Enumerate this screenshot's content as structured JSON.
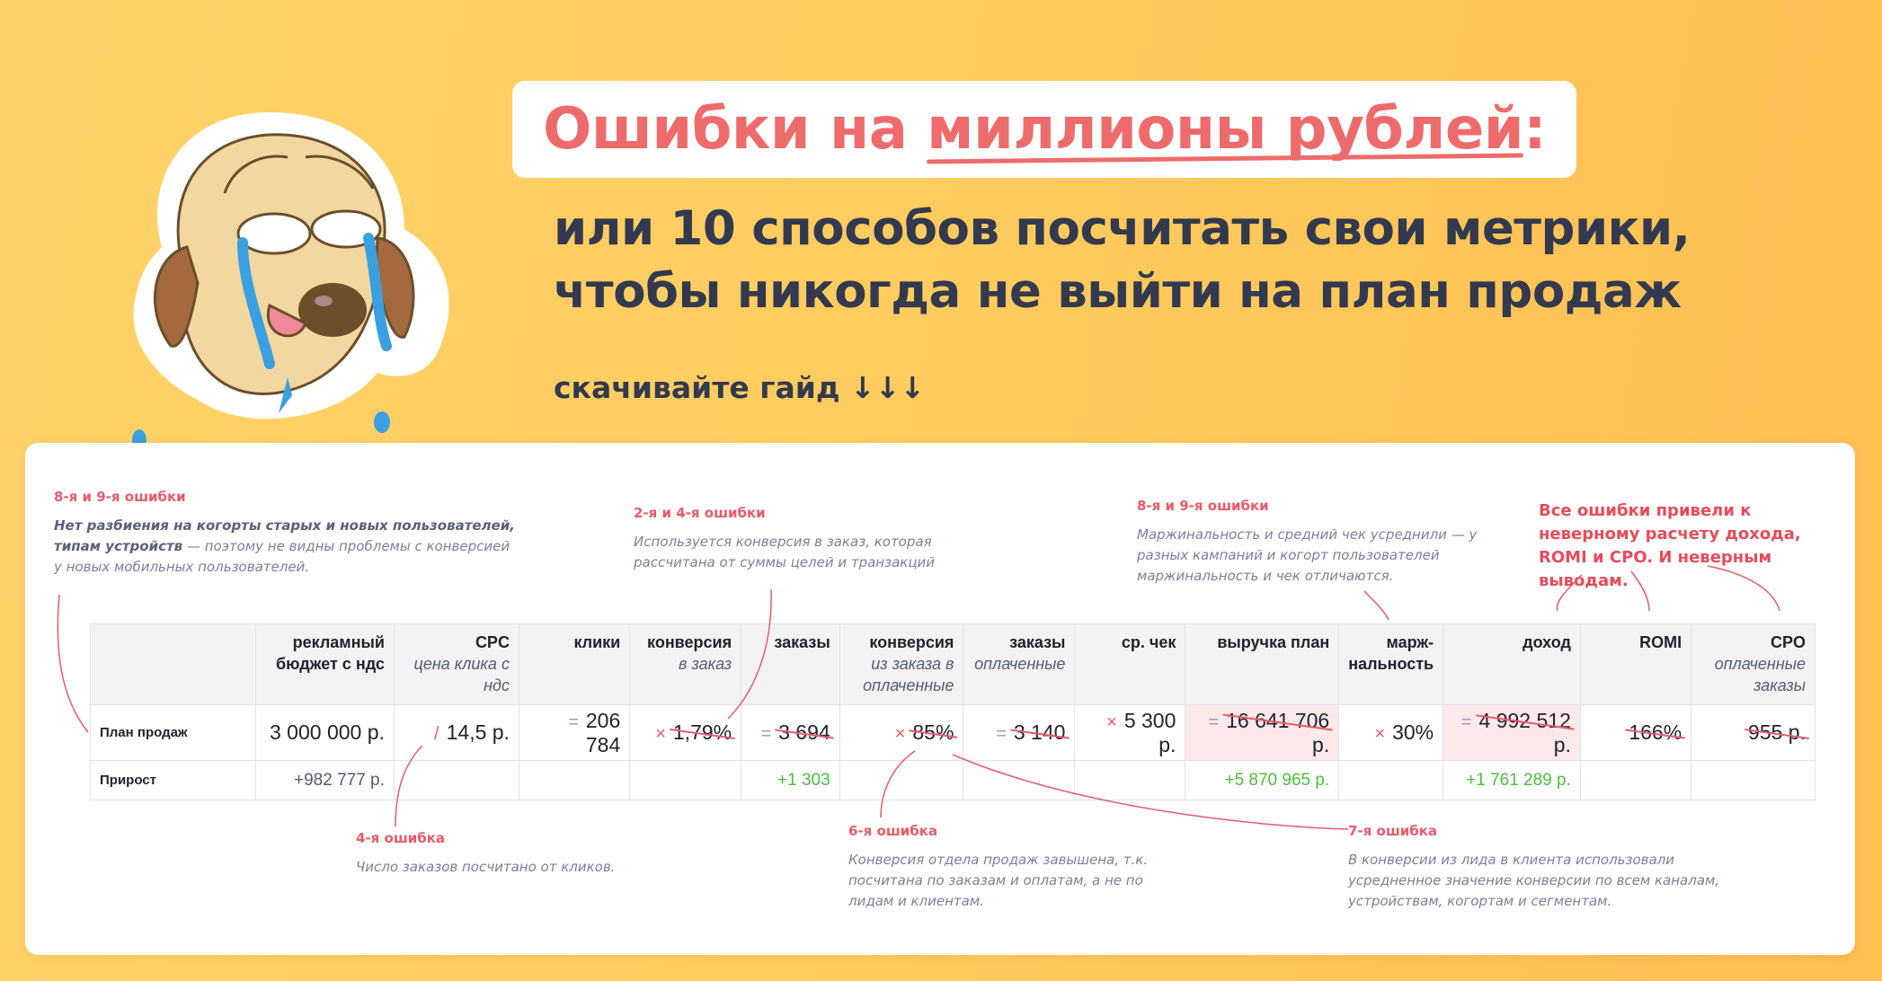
{
  "header": {
    "title_part1": "Ошибки на ",
    "title_highlight": "миллионы рублей",
    "title_colon": ":",
    "subtitle_line1": "или 10 способов посчитать свои метрики,",
    "subtitle_line2": "чтобы никогда не выйти на план продаж",
    "download_label": "скачивайте гайд ↓↓↓"
  },
  "notes": {
    "n1": {
      "title": "8-я и 9-я ошибки",
      "bold": "Нет разбиения на когорты старых и новых пользователей, типам устройств",
      "text": " — поэтому не видны проблемы с конверсией у новых мобильных пользователей."
    },
    "n2": {
      "title": "2-я и 4-я ошибки",
      "text": "Используется конверсия в заказ, которая рассчитана от суммы целей и транзакций"
    },
    "n3": {
      "title": "8-я и 9-я ошибки",
      "text": "Маржинальность и средний чек усреднили — у разных кампаний и когорт пользователей маржинальность и чек отличаются."
    },
    "n4": {
      "title": "Все ошибки привели к неверному расчету дохода, ROMI и CPO. И неверным выводам."
    },
    "n5": {
      "title": "4-я ошибка",
      "text": "Число заказов посчитано от кликов."
    },
    "n6": {
      "title": "6-я ошибка",
      "text": "Конверсия отдела продаж завышена, т.к. посчитана по заказам и оплатам, а не по лидам и клиентам."
    },
    "n7": {
      "title": "7-я ошибка",
      "text": "В конверсии из лида в клиента использовали усредненное значение конверсии по всем каналам, устройствам, когортам и сегментам."
    }
  },
  "table": {
    "headers": [
      {
        "main": "",
        "sub": ""
      },
      {
        "main": "рекламный бюджет с ндс",
        "sub": ""
      },
      {
        "main": "CPC",
        "sub": "цена клика с ндс"
      },
      {
        "main": "клики",
        "sub": ""
      },
      {
        "main": "конверсия",
        "sub": "в заказ"
      },
      {
        "main": "заказы",
        "sub": ""
      },
      {
        "main": "конверсия",
        "sub": "из заказа в оплаченные"
      },
      {
        "main": "заказы",
        "sub": "оплаченные"
      },
      {
        "main": "ср. чек",
        "sub": ""
      },
      {
        "main": "выручка план",
        "sub": ""
      },
      {
        "main": "марж-нальность",
        "sub": ""
      },
      {
        "main": "доход",
        "sub": ""
      },
      {
        "main": "ROMI",
        "sub": ""
      },
      {
        "main": "CPO",
        "sub": "оплаченные заказы"
      }
    ],
    "row1": {
      "label": "План продаж",
      "budget": "3 000 000 р.",
      "cpc": "14,5 р.",
      "clicks": "206 784",
      "conv": "1,79%",
      "orders": "3 694",
      "conv2": "85%",
      "paid": "3 140",
      "check": "5 300 р.",
      "revenue": "16 641 706",
      "revenue_unit": "р.",
      "margin": "30%",
      "income": "4 992 512",
      "income_unit": "р.",
      "romi": "166%",
      "cpo": "955 р."
    },
    "row2": {
      "label": "Прирост",
      "budget": "+982 777 р.",
      "orders": "+1 303",
      "revenue": "+5 870 965 р.",
      "income": "+1 761 289 р."
    }
  }
}
